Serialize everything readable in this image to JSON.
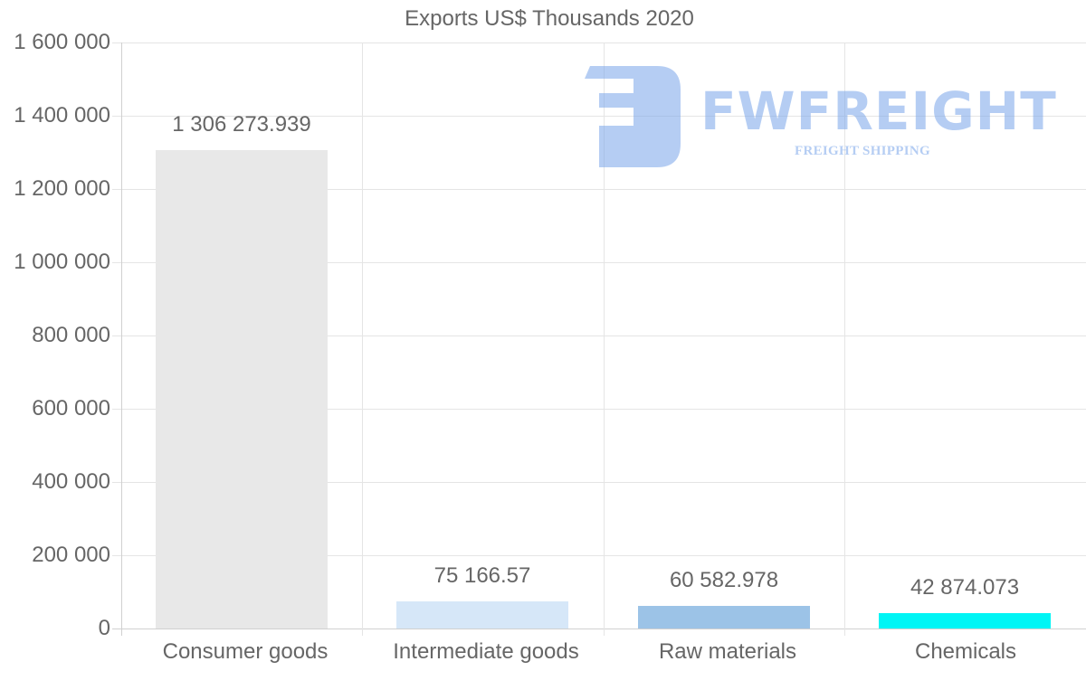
{
  "chart_data": {
    "type": "bar",
    "title": "Exports US$ Thousands 2020",
    "xlabel": "",
    "ylabel": "",
    "categories": [
      "Consumer goods",
      "Intermediate goods",
      "Raw materials",
      "Chemicals"
    ],
    "values": [
      1306273.939,
      75166.57,
      60582.978,
      42874.073
    ],
    "value_labels": [
      "1 306 273.939",
      "75 166.57",
      "60 582.978",
      "42 874.073"
    ],
    "colors": [
      "#e8e8e8",
      "#d6e7f8",
      "#9cc3e7",
      "#00f5f5"
    ],
    "ylim": [
      0,
      1600000
    ],
    "yticks": [
      0,
      200000,
      400000,
      600000,
      800000,
      1000000,
      1200000,
      1400000,
      1600000
    ],
    "ytick_labels": [
      "0",
      "200 000",
      "400 000",
      "600 000",
      "800 000",
      "1 000 000",
      "1 200 000",
      "1 400 000",
      "1 600 000"
    ],
    "grid": true,
    "legend": "none"
  },
  "watermark": {
    "brand": "FWFREIGHT",
    "tagline": "FREIGHT SHIPPING",
    "color": "#7aa6ea"
  }
}
